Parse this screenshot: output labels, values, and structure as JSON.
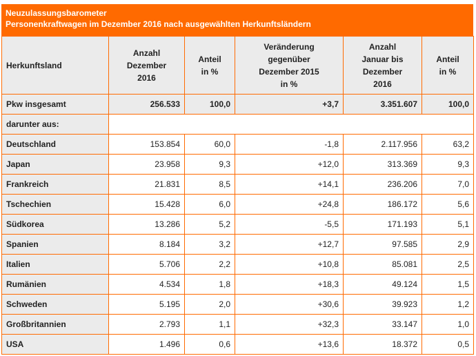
{
  "header": {
    "title": "Neuzulassungsbarometer",
    "subtitle": "Personenkraftwagen im Dezember 2016 nach ausgewählten Herkunftsländern"
  },
  "table": {
    "columns": [
      [
        "Herkunftsland"
      ],
      [
        "Anzahl",
        "Dezember",
        "2016"
      ],
      [
        "Anteil",
        "in %"
      ],
      [
        "Veränderung",
        "gegenüber",
        "Dezember 2015",
        "in %"
      ],
      [
        "Anzahl",
        "Januar bis",
        "Dezember",
        "2016"
      ],
      [
        "Anteil",
        "in %"
      ]
    ],
    "rows": [
      [
        "Pkw insgesamt",
        "256.533",
        "100,0",
        "+3,7",
        "3.351.607",
        "100,0"
      ],
      [
        "darunter aus:"
      ],
      [
        "Deutschland",
        "153.854",
        "60,0",
        "-1,8",
        "2.117.956",
        "63,2"
      ],
      [
        "Japan",
        "23.958",
        "9,3",
        "+12,0",
        "313.369",
        "9,3"
      ],
      [
        "Frankreich",
        "21.831",
        "8,5",
        "+14,1",
        "236.206",
        "7,0"
      ],
      [
        "Tschechien",
        "15.428",
        "6,0",
        "+24,8",
        "186.172",
        "5,6"
      ],
      [
        "Südkorea",
        "13.286",
        "5,2",
        "-5,5",
        "171.193",
        "5,1"
      ],
      [
        "Spanien",
        "8.184",
        "3,2",
        "+12,7",
        "97.585",
        "2,9"
      ],
      [
        "Italien",
        "5.706",
        "2,2",
        "+10,8",
        "85.081",
        "2,5"
      ],
      [
        "Rumänien",
        "4.534",
        "1,8",
        "+18,3",
        "49.124",
        "1,5"
      ],
      [
        "Schweden",
        "5.195",
        "2,0",
        "+30,6",
        "39.923",
        "1,2"
      ],
      [
        "Großbritannien",
        "2.793",
        "1,1",
        "+32,3",
        "33.147",
        "1,0"
      ],
      [
        "USA",
        "1.496",
        "0,6",
        "+13,6",
        "18.372",
        "0,5"
      ]
    ]
  }
}
